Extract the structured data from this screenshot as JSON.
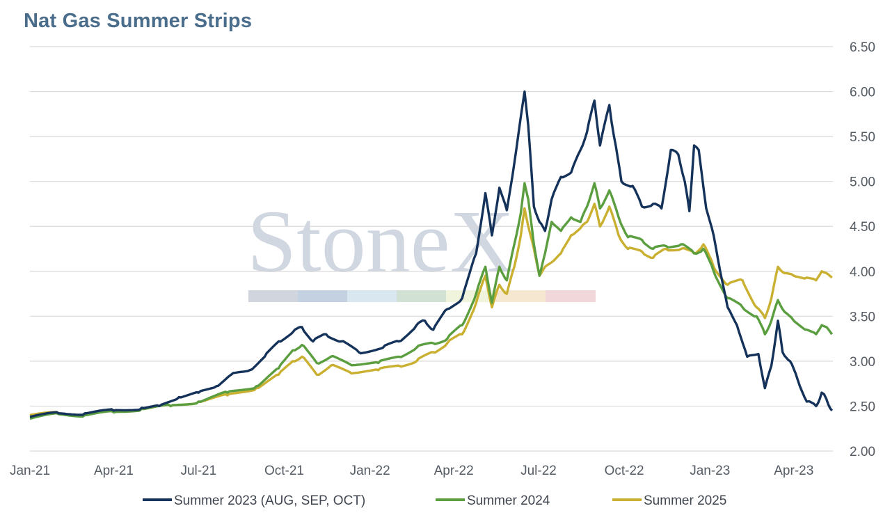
{
  "title": "Nat Gas Summer Strips",
  "watermark": "StoneX",
  "chart_data": {
    "type": "line",
    "title": "Nat Gas Summer Strips",
    "xlabel": "",
    "ylabel": "",
    "ylim": [
      2.0,
      6.5
    ],
    "y_ticks": [
      "2.00",
      "2.50",
      "3.00",
      "3.50",
      "4.00",
      "4.50",
      "5.00",
      "5.50",
      "6.00",
      "6.50"
    ],
    "y_axis_side": "right",
    "x_ticks": [
      "Jan-21",
      "Apr-21",
      "Jul-21",
      "Oct-21",
      "Jan-22",
      "Apr-22",
      "Jul-22",
      "Oct-22",
      "Jan-23",
      "Apr-23"
    ],
    "grid": "horizontal",
    "legend_position": "bottom",
    "series": [
      {
        "name": "Summer 2023 (AUG, SEP, OCT)",
        "color": "#14325a",
        "points": [
          [
            "2021-01-01",
            2.38
          ],
          [
            "2021-02-01",
            2.42
          ],
          [
            "2021-03-01",
            2.42
          ],
          [
            "2021-04-01",
            2.45
          ],
          [
            "2021-05-01",
            2.48
          ],
          [
            "2021-05-20",
            2.5
          ],
          [
            "2021-06-10",
            2.6
          ],
          [
            "2021-07-01",
            2.65
          ],
          [
            "2021-07-20",
            2.72
          ],
          [
            "2021-08-05",
            2.85
          ],
          [
            "2021-08-25",
            2.9
          ],
          [
            "2021-09-10",
            3.05
          ],
          [
            "2021-09-25",
            3.22
          ],
          [
            "2021-10-10",
            3.32
          ],
          [
            "2021-10-20",
            3.38
          ],
          [
            "2021-11-01",
            3.22
          ],
          [
            "2021-11-15",
            3.3
          ],
          [
            "2021-12-01",
            3.22
          ],
          [
            "2021-12-20",
            3.1
          ],
          [
            "2022-01-15",
            3.15
          ],
          [
            "2022-02-01",
            3.22
          ],
          [
            "2022-02-20",
            3.4
          ],
          [
            "2022-03-01",
            3.45
          ],
          [
            "2022-03-10",
            3.35
          ],
          [
            "2022-03-25",
            3.58
          ],
          [
            "2022-04-10",
            3.7
          ],
          [
            "2022-04-25",
            4.2
          ],
          [
            "2022-05-05",
            4.87
          ],
          [
            "2022-05-12",
            4.4
          ],
          [
            "2022-05-20",
            4.93
          ],
          [
            "2022-05-28",
            4.68
          ],
          [
            "2022-06-05",
            5.2
          ],
          [
            "2022-06-12",
            5.72
          ],
          [
            "2022-06-16",
            6.0
          ],
          [
            "2022-06-20",
            5.62
          ],
          [
            "2022-06-26",
            4.72
          ],
          [
            "2022-07-02",
            4.55
          ],
          [
            "2022-07-08",
            4.45
          ],
          [
            "2022-07-15",
            4.8
          ],
          [
            "2022-07-25",
            5.05
          ],
          [
            "2022-08-05",
            5.1
          ],
          [
            "2022-08-15",
            5.35
          ],
          [
            "2022-08-22",
            5.55
          ],
          [
            "2022-08-30",
            5.9
          ],
          [
            "2022-09-05",
            5.4
          ],
          [
            "2022-09-15",
            5.85
          ],
          [
            "2022-09-20",
            5.5
          ],
          [
            "2022-09-28",
            5.0
          ],
          [
            "2022-10-10",
            4.95
          ],
          [
            "2022-10-20",
            4.72
          ],
          [
            "2022-11-01",
            4.75
          ],
          [
            "2022-11-10",
            4.7
          ],
          [
            "2022-11-20",
            5.35
          ],
          [
            "2022-11-28",
            5.3
          ],
          [
            "2022-12-05",
            5.0
          ],
          [
            "2022-12-10",
            4.67
          ],
          [
            "2022-12-15",
            5.4
          ],
          [
            "2022-12-20",
            5.35
          ],
          [
            "2022-12-28",
            4.7
          ],
          [
            "2023-01-05",
            4.4
          ],
          [
            "2023-01-12",
            4.0
          ],
          [
            "2023-01-20",
            3.6
          ],
          [
            "2023-01-30",
            3.4
          ],
          [
            "2023-02-10",
            3.05
          ],
          [
            "2023-02-22",
            3.08
          ],
          [
            "2023-03-01",
            2.7
          ],
          [
            "2023-03-08",
            2.95
          ],
          [
            "2023-03-15",
            3.45
          ],
          [
            "2023-03-20",
            3.1
          ],
          [
            "2023-03-28",
            3.0
          ],
          [
            "2023-04-05",
            2.8
          ],
          [
            "2023-04-15",
            2.55
          ],
          [
            "2023-04-25",
            2.5
          ],
          [
            "2023-05-01",
            2.65
          ],
          [
            "2023-05-06",
            2.58
          ],
          [
            "2023-05-12",
            2.45
          ]
        ]
      },
      {
        "name": "Summer 2024",
        "color": "#5a9e3f",
        "points": [
          [
            "2021-01-01",
            2.36
          ],
          [
            "2021-02-01",
            2.41
          ],
          [
            "2021-03-01",
            2.4
          ],
          [
            "2021-04-01",
            2.43
          ],
          [
            "2021-05-01",
            2.47
          ],
          [
            "2021-06-01",
            2.5
          ],
          [
            "2021-07-01",
            2.55
          ],
          [
            "2021-08-01",
            2.65
          ],
          [
            "2021-09-01",
            2.72
          ],
          [
            "2021-09-25",
            2.92
          ],
          [
            "2021-10-10",
            3.12
          ],
          [
            "2021-10-20",
            3.18
          ],
          [
            "2021-11-05",
            2.98
          ],
          [
            "2021-11-20",
            3.05
          ],
          [
            "2021-12-10",
            2.97
          ],
          [
            "2022-01-10",
            2.98
          ],
          [
            "2022-02-01",
            3.05
          ],
          [
            "2022-02-20",
            3.15
          ],
          [
            "2022-03-10",
            3.2
          ],
          [
            "2022-03-25",
            3.25
          ],
          [
            "2022-04-10",
            3.4
          ],
          [
            "2022-04-25",
            3.75
          ],
          [
            "2022-05-05",
            4.05
          ],
          [
            "2022-05-12",
            3.65
          ],
          [
            "2022-05-20",
            4.05
          ],
          [
            "2022-05-28",
            3.9
          ],
          [
            "2022-06-05",
            4.3
          ],
          [
            "2022-06-12",
            4.65
          ],
          [
            "2022-06-16",
            4.98
          ],
          [
            "2022-06-20",
            4.8
          ],
          [
            "2022-06-26",
            4.3
          ],
          [
            "2022-07-02",
            3.95
          ],
          [
            "2022-07-08",
            4.2
          ],
          [
            "2022-07-15",
            4.55
          ],
          [
            "2022-07-25",
            4.45
          ],
          [
            "2022-08-05",
            4.6
          ],
          [
            "2022-08-15",
            4.55
          ],
          [
            "2022-08-22",
            4.72
          ],
          [
            "2022-08-30",
            4.98
          ],
          [
            "2022-09-05",
            4.7
          ],
          [
            "2022-09-15",
            4.9
          ],
          [
            "2022-09-25",
            4.6
          ],
          [
            "2022-10-05",
            4.38
          ],
          [
            "2022-10-20",
            4.35
          ],
          [
            "2022-11-01",
            4.25
          ],
          [
            "2022-11-15",
            4.28
          ],
          [
            "2022-12-01",
            4.3
          ],
          [
            "2022-12-15",
            4.2
          ],
          [
            "2022-12-25",
            4.25
          ],
          [
            "2023-01-05",
            4.0
          ],
          [
            "2023-01-20",
            3.7
          ],
          [
            "2023-02-05",
            3.6
          ],
          [
            "2023-02-20",
            3.5
          ],
          [
            "2023-03-01",
            3.3
          ],
          [
            "2023-03-08",
            3.45
          ],
          [
            "2023-03-15",
            3.68
          ],
          [
            "2023-03-22",
            3.55
          ],
          [
            "2023-04-01",
            3.45
          ],
          [
            "2023-04-15",
            3.35
          ],
          [
            "2023-04-25",
            3.3
          ],
          [
            "2023-05-01",
            3.4
          ],
          [
            "2023-05-06",
            3.38
          ],
          [
            "2023-05-12",
            3.3
          ]
        ]
      },
      {
        "name": "Summer 2025",
        "color": "#c9b030",
        "points": [
          [
            "2021-01-01",
            2.4
          ],
          [
            "2021-02-01",
            2.42
          ],
          [
            "2021-03-01",
            2.41
          ],
          [
            "2021-04-01",
            2.45
          ],
          [
            "2021-05-01",
            2.47
          ],
          [
            "2021-06-01",
            2.5
          ],
          [
            "2021-07-01",
            2.55
          ],
          [
            "2021-08-01",
            2.62
          ],
          [
            "2021-09-01",
            2.7
          ],
          [
            "2021-09-25",
            2.85
          ],
          [
            "2021-10-10",
            3.0
          ],
          [
            "2021-10-20",
            3.05
          ],
          [
            "2021-11-05",
            2.85
          ],
          [
            "2021-11-20",
            2.95
          ],
          [
            "2021-12-10",
            2.88
          ],
          [
            "2022-01-10",
            2.9
          ],
          [
            "2022-02-01",
            2.95
          ],
          [
            "2022-02-20",
            3.0
          ],
          [
            "2022-03-10",
            3.1
          ],
          [
            "2022-03-25",
            3.2
          ],
          [
            "2022-04-10",
            3.3
          ],
          [
            "2022-04-25",
            3.65
          ],
          [
            "2022-05-05",
            3.95
          ],
          [
            "2022-05-12",
            3.6
          ],
          [
            "2022-05-20",
            3.85
          ],
          [
            "2022-05-28",
            3.75
          ],
          [
            "2022-06-05",
            4.05
          ],
          [
            "2022-06-12",
            4.4
          ],
          [
            "2022-06-16",
            4.7
          ],
          [
            "2022-06-20",
            4.5
          ],
          [
            "2022-06-26",
            4.25
          ],
          [
            "2022-07-02",
            3.95
          ],
          [
            "2022-07-08",
            4.05
          ],
          [
            "2022-07-15",
            4.1
          ],
          [
            "2022-07-25",
            4.2
          ],
          [
            "2022-08-05",
            4.4
          ],
          [
            "2022-08-15",
            4.48
          ],
          [
            "2022-08-22",
            4.55
          ],
          [
            "2022-08-30",
            4.75
          ],
          [
            "2022-09-05",
            4.5
          ],
          [
            "2022-09-15",
            4.72
          ],
          [
            "2022-09-25",
            4.4
          ],
          [
            "2022-10-05",
            4.25
          ],
          [
            "2022-10-20",
            4.22
          ],
          [
            "2022-11-01",
            4.15
          ],
          [
            "2022-11-15",
            4.25
          ],
          [
            "2022-12-01",
            4.25
          ],
          [
            "2022-12-15",
            4.2
          ],
          [
            "2022-12-25",
            4.3
          ],
          [
            "2023-01-05",
            4.05
          ],
          [
            "2023-01-20",
            3.85
          ],
          [
            "2023-02-05",
            3.9
          ],
          [
            "2023-02-20",
            3.6
          ],
          [
            "2023-03-01",
            3.48
          ],
          [
            "2023-03-08",
            3.7
          ],
          [
            "2023-03-15",
            4.05
          ],
          [
            "2023-03-22",
            3.98
          ],
          [
            "2023-04-01",
            3.95
          ],
          [
            "2023-04-15",
            3.93
          ],
          [
            "2023-04-25",
            3.9
          ],
          [
            "2023-05-01",
            4.0
          ],
          [
            "2023-05-06",
            3.98
          ],
          [
            "2023-05-12",
            3.93
          ]
        ]
      }
    ]
  }
}
